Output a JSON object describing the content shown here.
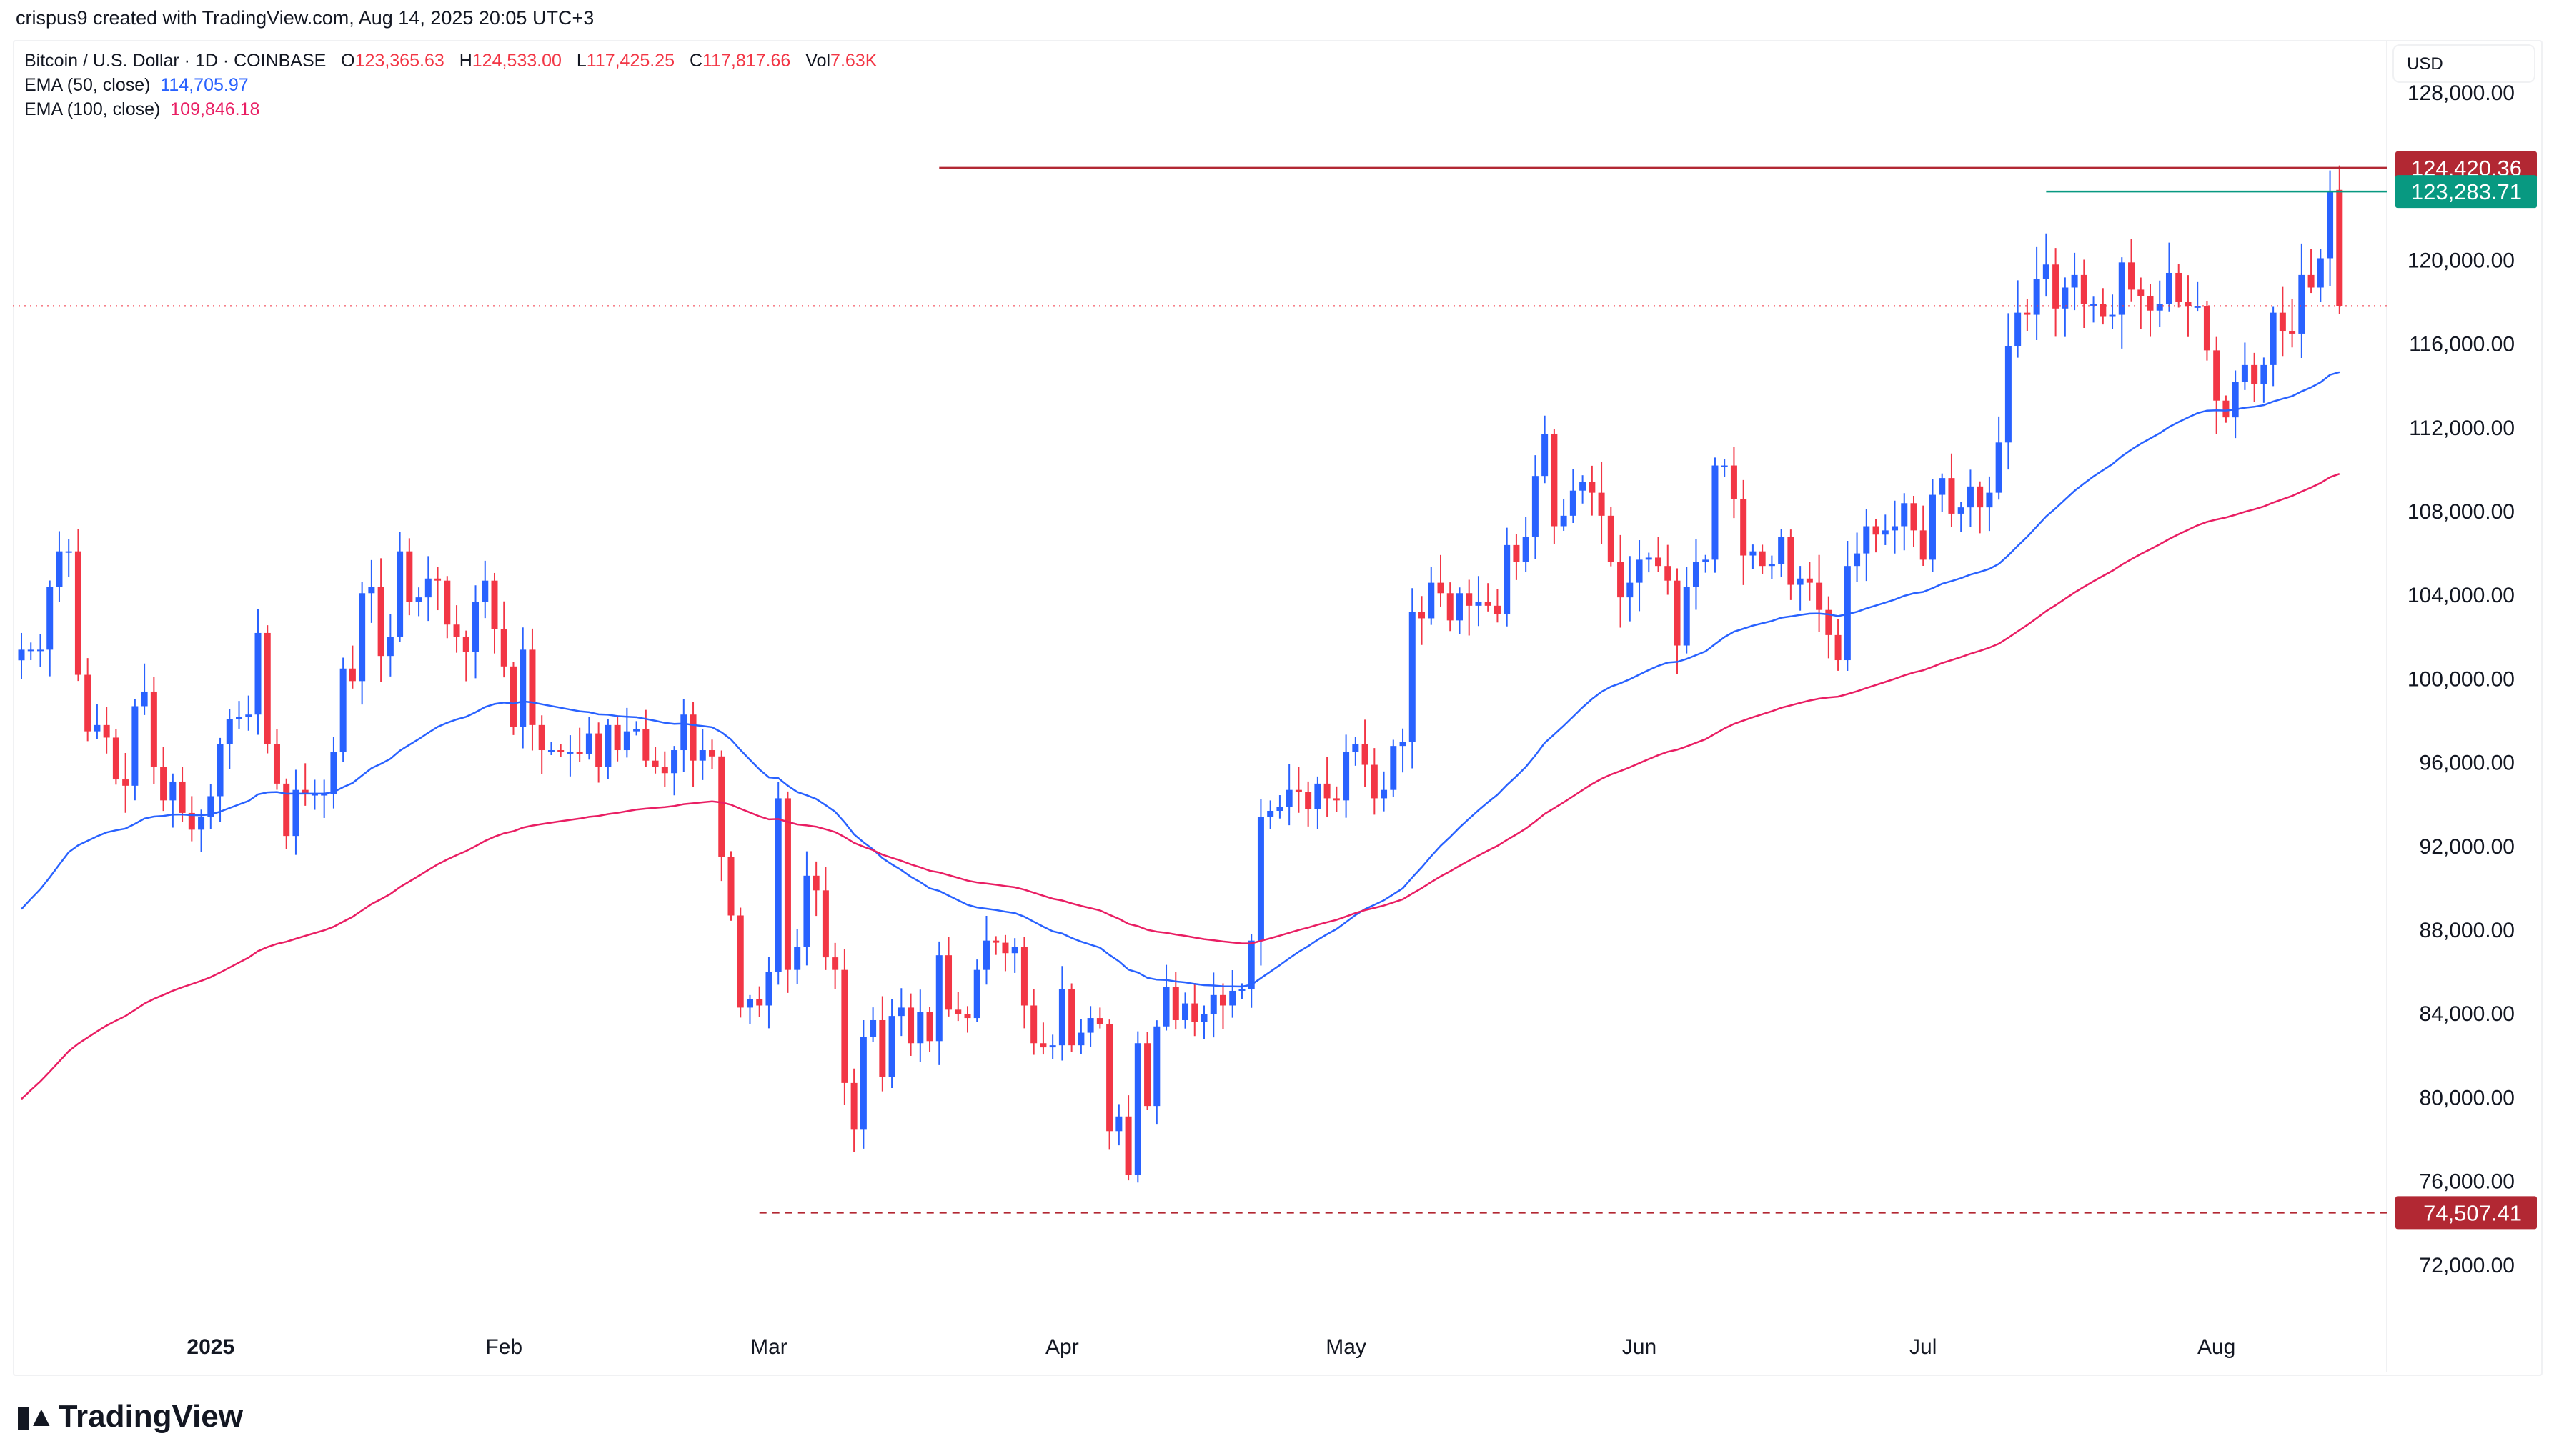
{
  "credit": "crispus9 created with TradingView.com, Aug 14, 2025 20:05 UTC+3",
  "legend": {
    "symbol": "Bitcoin / U.S. Dollar · 1D · COINBASE",
    "o_label": "O",
    "o": "123,365.63",
    "h_label": "H",
    "h": "124,533.00",
    "l_label": "L",
    "l": "117,425.25",
    "c_label": "C",
    "c": "117,817.66",
    "vol_label": "Vol",
    "vol": "7.63K",
    "ema50_label": "EMA (50, close)",
    "ema50": "114,705.97",
    "ema100_label": "EMA (100, close)",
    "ema100": "109,846.18"
  },
  "currency": "USD",
  "brand": "TradingView",
  "colors": {
    "up": "#2962ff",
    "down": "#f23645",
    "ema50": "#2962ff",
    "ema100": "#e91e63",
    "resistance": "#b22833",
    "high_line": "#089981"
  },
  "chart_data": {
    "type": "candlestick",
    "start_date": "2024-12-12",
    "closes": [
      101.4,
      101.4,
      101.4,
      104.4,
      106.1,
      106.1,
      100.2,
      97.5,
      97.8,
      97.2,
      95.2,
      94.9,
      98.7,
      99.4,
      95.8,
      94.2,
      95.1,
      93.6,
      92.8,
      93.4,
      94.4,
      96.9,
      98.1,
      98.2,
      98.3,
      102.2,
      96.9,
      95.0,
      92.5,
      94.7,
      94.5,
      94.5,
      94.5,
      96.5,
      100.5,
      99.9,
      104.1,
      104.4,
      101.1,
      102.0,
      106.1,
      103.7,
      103.9,
      104.8,
      104.7,
      102.6,
      102.0,
      101.3,
      103.7,
      104.7,
      102.4,
      100.6,
      97.7,
      101.4,
      97.8,
      96.6,
      96.6,
      96.5,
      96.5,
      96.4,
      97.4,
      95.8,
      97.8,
      96.6,
      97.5,
      97.6,
      96.1,
      95.8,
      95.5,
      96.6,
      98.3,
      96.1,
      96.6,
      96.3,
      91.5,
      88.7,
      84.3,
      84.7,
      84.4,
      86.0,
      94.3,
      86.1,
      87.2,
      90.6,
      89.9,
      86.7,
      86.1,
      80.7,
      78.5,
      82.9,
      83.7,
      81.0,
      83.9,
      84.3,
      82.6,
      84.1,
      82.7,
      86.8,
      84.2,
      84.0,
      83.8,
      86.1,
      87.5,
      87.4,
      86.9,
      87.2,
      84.4,
      82.6,
      82.4,
      82.5,
      85.2,
      82.5,
      83.1,
      83.8,
      83.5,
      78.4,
      79.1,
      76.3,
      82.6,
      79.6,
      83.4,
      85.3,
      83.7,
      84.5,
      83.6,
      84.0,
      84.9,
      84.4,
      85.1,
      85.2,
      87.5,
      93.4,
      93.7,
      93.9,
      94.7,
      94.6,
      93.8,
      95.0,
      94.3,
      94.2,
      96.5,
      96.9,
      95.9,
      94.3,
      94.7,
      96.8,
      97.0,
      103.2,
      102.9,
      104.6,
      104.1,
      102.8,
      104.1,
      103.5,
      103.7,
      103.5,
      103.1,
      106.4,
      105.6,
      106.8,
      109.7,
      111.7,
      107.3,
      107.8,
      109.0,
      109.4,
      108.9,
      107.8,
      105.6,
      103.9,
      104.6,
      105.7,
      105.8,
      105.4,
      104.7,
      101.6,
      104.4,
      105.6,
      105.7,
      110.2,
      110.2,
      108.6,
      105.9,
      106.1,
      105.4,
      105.5,
      106.8,
      104.5,
      104.8,
      104.6,
      103.3,
      102.1,
      100.9,
      105.4,
      106.0,
      107.3,
      106.9,
      107.1,
      107.3,
      108.4,
      107.1,
      105.7,
      108.8,
      109.6,
      107.9,
      108.2,
      109.2,
      108.2,
      108.9,
      111.3,
      115.9,
      117.5,
      117.4,
      119.1,
      119.8,
      117.7,
      118.7,
      119.3,
      117.9,
      117.9,
      117.3,
      117.4,
      119.9,
      118.6,
      118.3,
      117.6,
      117.9,
      119.4,
      118.0,
      117.8,
      117.8,
      115.7,
      113.3,
      112.5,
      114.2,
      115.0,
      114.1,
      115.0,
      117.5,
      116.6,
      116.5,
      119.3,
      118.7,
      120.1,
      123.3,
      117.8
    ],
    "closes_unit": "thousand USD",
    "last_candle": {
      "open": 123365.63,
      "high": 124533.0,
      "low": 117425.25,
      "close": 117817.66
    },
    "ema50_start": 88.5,
    "ema100_start": 79.5,
    "y_ticks": [
      "128,000.00",
      "120,000.00",
      "116,000.00",
      "112,000.00",
      "108,000.00",
      "104,000.00",
      "100,000.00",
      "96,000.00",
      "92,000.00",
      "88,000.00",
      "84,000.00",
      "80,000.00",
      "76,000.00",
      "72,000.00"
    ],
    "y_tick_values": [
      128000,
      120000,
      116000,
      112000,
      108000,
      104000,
      100000,
      96000,
      92000,
      88000,
      84000,
      80000,
      76000,
      72000
    ],
    "x_ticks": [
      {
        "label": "2025",
        "date": "2025-01-01"
      },
      {
        "label": "Feb",
        "date": "2025-02-01"
      },
      {
        "label": "Mar",
        "date": "2025-03-01"
      },
      {
        "label": "Apr",
        "date": "2025-04-01"
      },
      {
        "label": "May",
        "date": "2025-05-01"
      },
      {
        "label": "Jun",
        "date": "2025-06-01"
      },
      {
        "label": "Jul",
        "date": "2025-07-01"
      },
      {
        "label": "Aug",
        "date": "2025-08-01"
      }
    ],
    "ylim": [
      70000,
      130000
    ],
    "levels": [
      {
        "label": "124,420.36",
        "value": 124420.36,
        "style": "solid",
        "color": "#b22833",
        "from": "2025-03-19"
      },
      {
        "label": "123,283.71",
        "value": 123283.71,
        "style": "solid",
        "color": "#089981",
        "from": "2025-07-14"
      },
      {
        "label": "74,507.41",
        "value": 74507.41,
        "style": "dashed",
        "color": "#b22833",
        "from": "2025-02-28"
      }
    ],
    "current_price_line": 117817.66
  }
}
